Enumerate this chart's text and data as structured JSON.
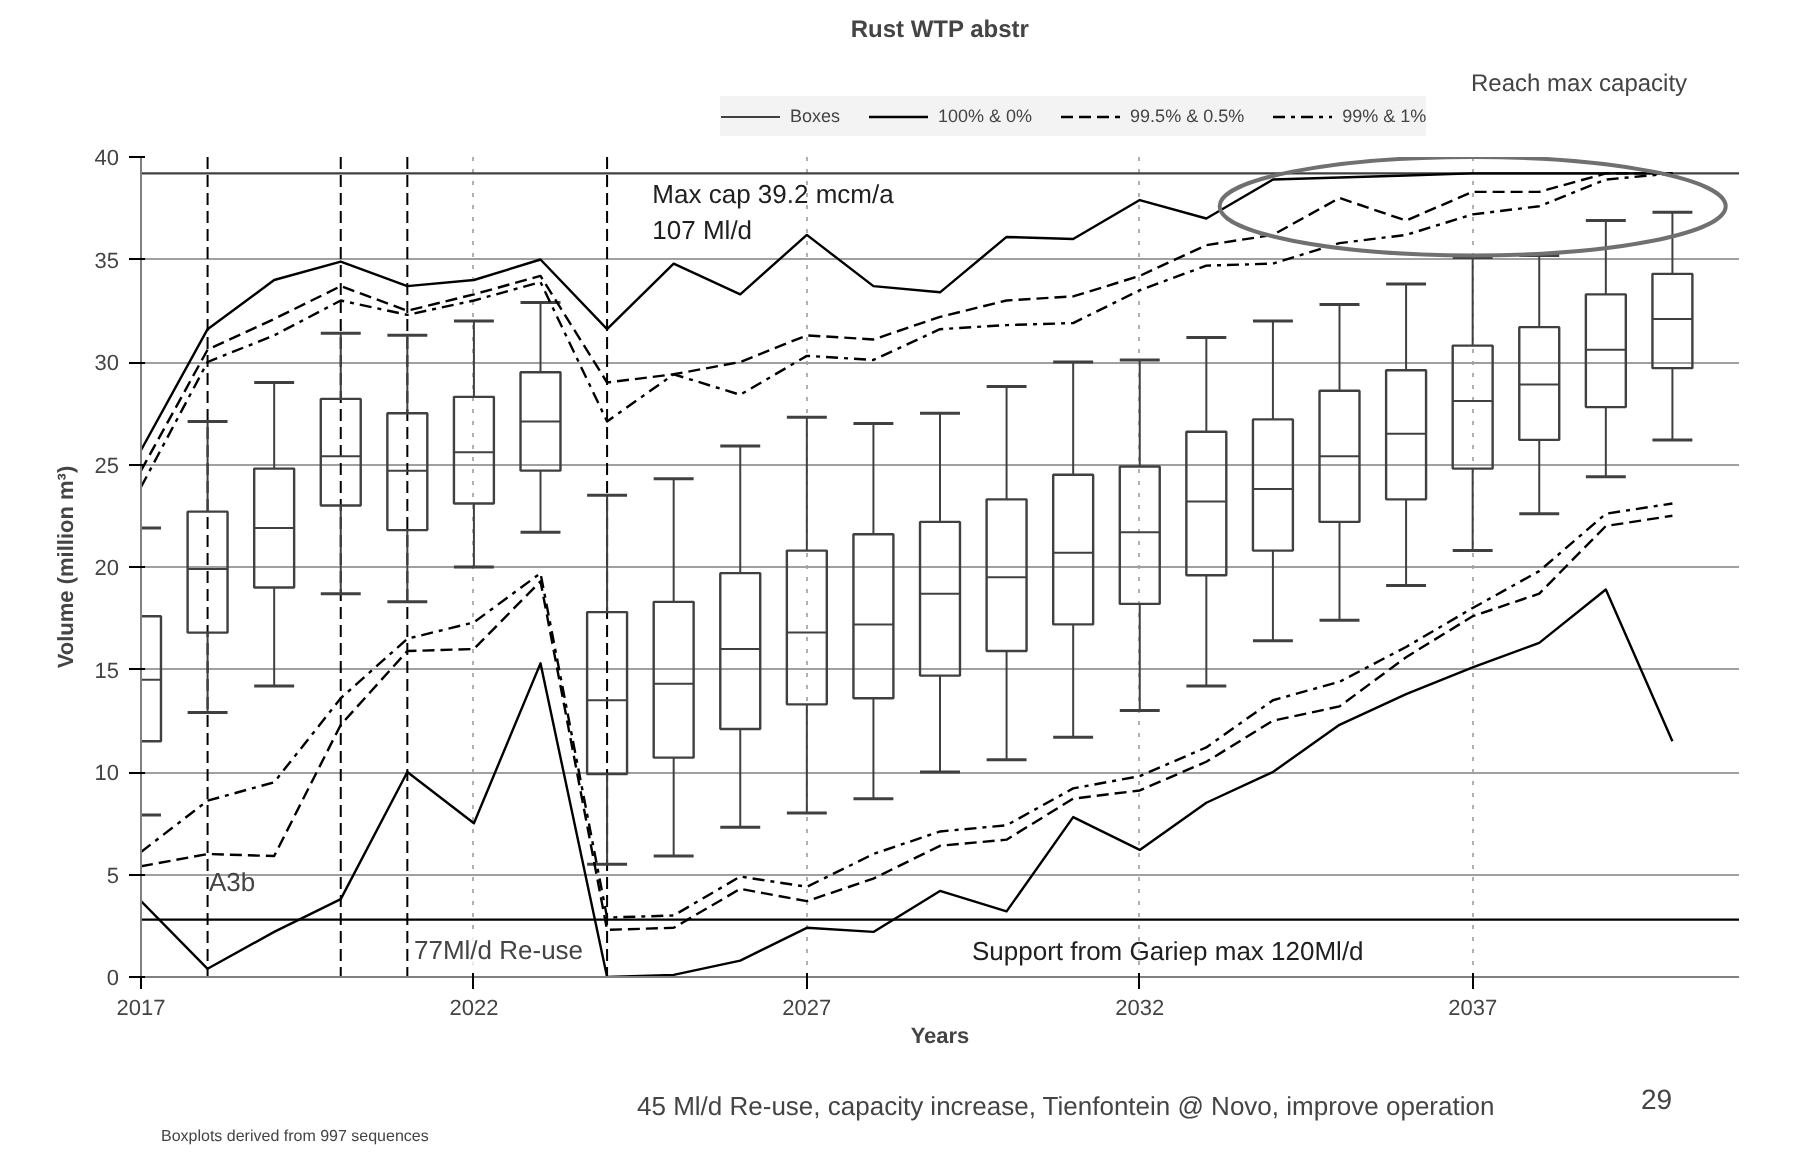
{
  "chart_data": {
    "type": "line",
    "title": "Rust WTP abstr",
    "xlabel": "Years",
    "ylabel": "Volume (million m³)",
    "x": [
      2017,
      2018,
      2019,
      2020,
      2021,
      2022,
      2023,
      2024,
      2025,
      2026,
      2027,
      2028,
      2029,
      2030,
      2031,
      2032,
      2033,
      2034,
      2035,
      2036,
      2037,
      2038,
      2039,
      2040
    ],
    "xlim": [
      2017,
      2041
    ],
    "xticks": [
      2017,
      2022,
      2027,
      2032,
      2037
    ],
    "ylim": [
      0,
      40
    ],
    "yticks": [
      0,
      5,
      10,
      15,
      20,
      25,
      30,
      35,
      40
    ],
    "grid": true,
    "legend": "top",
    "series": [
      {
        "type": "box",
        "name": "Boxes",
        "color": "#404040",
        "boxes": [
          {
            "low": 7.9,
            "q1": 11.5,
            "median": 14.5,
            "q3": 17.6,
            "high": 21.9
          },
          {
            "low": 12.9,
            "q1": 16.8,
            "median": 19.9,
            "q3": 22.7,
            "high": 27.1
          },
          {
            "low": 14.2,
            "q1": 19.0,
            "median": 21.9,
            "q3": 24.8,
            "high": 29.0
          },
          {
            "low": 18.7,
            "q1": 23.0,
            "median": 25.4,
            "q3": 28.2,
            "high": 31.4
          },
          {
            "low": 18.3,
            "q1": 21.8,
            "median": 24.7,
            "q3": 27.5,
            "high": 31.3
          },
          {
            "low": 20.0,
            "q1": 23.1,
            "median": 25.6,
            "q3": 28.3,
            "high": 32.0
          },
          {
            "low": 21.7,
            "q1": 24.7,
            "median": 27.1,
            "q3": 29.5,
            "high": 32.9
          },
          {
            "low": 5.5,
            "q1": 9.9,
            "median": 13.5,
            "q3": 17.8,
            "high": 23.5
          },
          {
            "low": 5.9,
            "q1": 10.7,
            "median": 14.3,
            "q3": 18.3,
            "high": 24.3
          },
          {
            "low": 7.3,
            "q1": 12.1,
            "median": 16.0,
            "q3": 19.7,
            "high": 25.9
          },
          {
            "low": 8.0,
            "q1": 13.3,
            "median": 16.8,
            "q3": 20.8,
            "high": 27.3
          },
          {
            "low": 8.7,
            "q1": 13.6,
            "median": 17.2,
            "q3": 21.6,
            "high": 27.0
          },
          {
            "low": 10.0,
            "q1": 14.7,
            "median": 18.7,
            "q3": 22.2,
            "high": 27.5
          },
          {
            "low": 10.6,
            "q1": 15.9,
            "median": 19.5,
            "q3": 23.3,
            "high": 28.8
          },
          {
            "low": 11.7,
            "q1": 17.2,
            "median": 20.7,
            "q3": 24.5,
            "high": 30.0
          },
          {
            "low": 13.0,
            "q1": 18.2,
            "median": 21.7,
            "q3": 24.9,
            "high": 30.1
          },
          {
            "low": 14.2,
            "q1": 19.6,
            "median": 23.2,
            "q3": 26.6,
            "high": 31.2
          },
          {
            "low": 16.4,
            "q1": 20.8,
            "median": 23.8,
            "q3": 27.2,
            "high": 32.0
          },
          {
            "low": 17.4,
            "q1": 22.2,
            "median": 25.4,
            "q3": 28.6,
            "high": 32.8
          },
          {
            "low": 19.1,
            "q1": 23.3,
            "median": 26.5,
            "q3": 29.6,
            "high": 33.8
          },
          {
            "low": 20.8,
            "q1": 24.8,
            "median": 28.1,
            "q3": 30.8,
            "high": 35.1
          },
          {
            "low": 22.6,
            "q1": 26.2,
            "median": 28.9,
            "q3": 31.7,
            "high": 35.2
          },
          {
            "low": 24.4,
            "q1": 27.8,
            "median": 30.6,
            "q3": 33.3,
            "high": 36.9
          },
          {
            "low": 26.2,
            "q1": 29.7,
            "median": 32.1,
            "q3": 34.3,
            "high": 37.3
          }
        ]
      },
      {
        "name": "100% & 0%",
        "color": "#000000",
        "line_style": "solid",
        "values": [
          25.7,
          31.6,
          34.0,
          34.9,
          33.7,
          34.0,
          35.0,
          31.6,
          34.8,
          33.3,
          36.2,
          33.7,
          33.4,
          36.1,
          36.0,
          37.9,
          37.0,
          38.9,
          39.0,
          39.1,
          39.2,
          39.2,
          39.2,
          39.2
        ]
      },
      {
        "color": "#000000",
        "line_style": "solid",
        "values": [
          3.7,
          0.4,
          2.2,
          3.8,
          10.0,
          7.5,
          15.3,
          0.0,
          0.1,
          0.8,
          2.4,
          2.2,
          4.2,
          3.2,
          7.8,
          6.2,
          8.5,
          10.0,
          12.3,
          13.8,
          15.1,
          16.3,
          18.9,
          11.5
        ]
      },
      {
        "name": "99.5% & 0.5%",
        "color": "#000000",
        "line_style": "dashed",
        "values": [
          24.7,
          30.6,
          32.1,
          33.7,
          32.5,
          33.3,
          34.2,
          29.0,
          29.4,
          30.0,
          31.3,
          31.1,
          32.2,
          33.0,
          33.2,
          34.2,
          35.7,
          36.2,
          38.0,
          36.9,
          38.3,
          38.3,
          39.2,
          39.2
        ]
      },
      {
        "color": "#000000",
        "line_style": "dashed",
        "values": [
          5.4,
          6.0,
          5.9,
          12.3,
          15.9,
          16.0,
          19.3,
          2.3,
          2.4,
          4.3,
          3.7,
          4.8,
          6.4,
          6.7,
          8.7,
          9.1,
          10.5,
          12.5,
          13.2,
          15.6,
          17.6,
          18.7,
          22.0,
          22.5
        ]
      },
      {
        "name": "99% & 1%",
        "color": "#000000",
        "line_style": "dashdot",
        "values": [
          23.9,
          30.0,
          31.3,
          33.0,
          32.3,
          33.0,
          33.9,
          27.1,
          29.4,
          28.4,
          30.3,
          30.1,
          31.6,
          31.8,
          31.9,
          33.5,
          34.7,
          34.8,
          35.8,
          36.2,
          37.2,
          37.6,
          38.9,
          39.2
        ]
      },
      {
        "color": "#000000",
        "line_style": "dashdot",
        "values": [
          6.1,
          8.6,
          9.5,
          13.6,
          16.5,
          17.3,
          19.7,
          2.9,
          3.0,
          4.9,
          4.4,
          6.0,
          7.1,
          7.4,
          9.2,
          9.8,
          11.2,
          13.5,
          14.4,
          16.1,
          18.0,
          19.8,
          22.6,
          23.1
        ]
      }
    ],
    "ref_lines": [
      {
        "axis": "y",
        "value": 39.2,
        "label": "Max cap 39.2 mcm/a\n107 Ml/d",
        "color": "#404040",
        "line_style": "solid"
      },
      {
        "axis": "y",
        "value": 2.8,
        "label": "Support from Gariep max  120Ml/d",
        "color": "#000000",
        "line_style": "solid"
      },
      {
        "axis": "x",
        "value": 2018,
        "color": "#000000",
        "line_style": "dashed"
      },
      {
        "axis": "x",
        "value": 2020,
        "color": "#000000",
        "line_style": "dashed"
      },
      {
        "axis": "x",
        "value": 2021,
        "color": "#000000",
        "line_style": "dashed"
      },
      {
        "axis": "x",
        "value": 2024,
        "color": "#000000",
        "line_style": "dashed"
      }
    ],
    "annotations": [
      "A3b",
      {
        "text": "77Ml/d Re-use",
        "x": 2021.1,
        "y": 0.6
      },
      "45 Ml/d Re-use, capacity increase, Tienfontein @ Novo, improve operation",
      "Reach max capacity",
      "Boxplots derived from 997 sequences",
      "29"
    ]
  }
}
